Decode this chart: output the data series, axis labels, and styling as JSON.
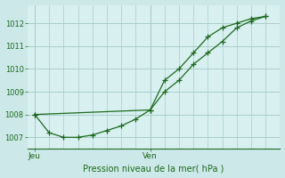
{
  "title": "Pression niveau de la mer( hPa )",
  "bg_color": "#cce8e8",
  "plot_bg_color": "#d8f0f0",
  "grid_color": "#aacccc",
  "line_color": "#1a6b1a",
  "ylim": [
    1006.5,
    1012.8
  ],
  "yticks": [
    1007,
    1008,
    1009,
    1010,
    1011,
    1012
  ],
  "xtick_positions": [
    0.0,
    8.0
  ],
  "xtick_labels": [
    "Jeu",
    "Ven"
  ],
  "line1_x": [
    0,
    1,
    2,
    3,
    4,
    5,
    6,
    7,
    8,
    9,
    10,
    11,
    12,
    13,
    14,
    15,
    16
  ],
  "line1_y": [
    1008.0,
    1007.2,
    1007.0,
    1007.0,
    1007.1,
    1007.3,
    1007.5,
    1007.8,
    1008.2,
    1009.5,
    1010.0,
    1010.7,
    1011.4,
    1011.8,
    1012.0,
    1012.2,
    1012.3
  ],
  "line2_x": [
    0,
    8,
    9,
    10,
    11,
    12,
    13,
    14,
    15,
    16
  ],
  "line2_y": [
    1008.0,
    1008.2,
    1009.0,
    1009.5,
    1010.2,
    1010.7,
    1011.2,
    1011.8,
    1012.1,
    1012.3
  ],
  "vline_positions": [
    0.0,
    8.0
  ],
  "marker_size": 4,
  "xlim": [
    -0.5,
    17
  ]
}
